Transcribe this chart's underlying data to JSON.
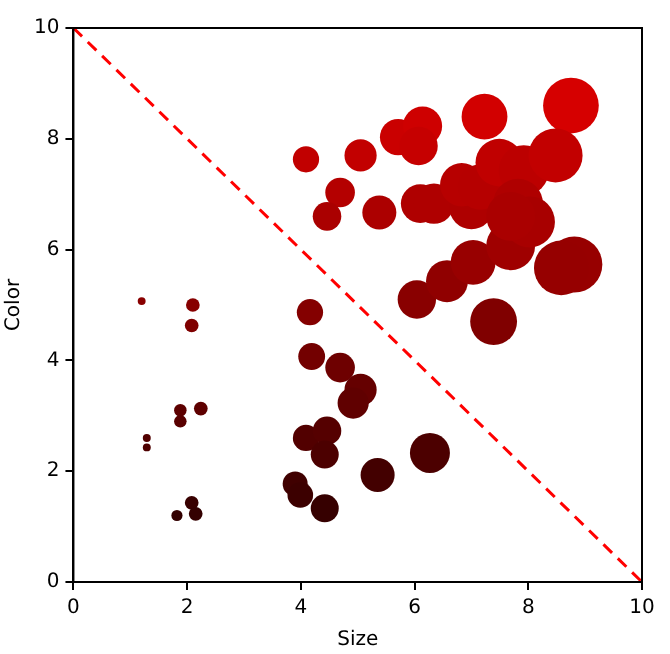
{
  "chart_data": {
    "type": "bubble",
    "xlabel": "Size",
    "ylabel": "Color",
    "xlim": [
      0,
      10
    ],
    "ylim": [
      0,
      10
    ],
    "xticks": [
      0,
      2,
      4,
      6,
      8,
      10
    ],
    "yticks": [
      0,
      2,
      4,
      6,
      8,
      10
    ],
    "grid": false,
    "legend": false,
    "series": [
      {
        "type": "bubble",
        "x": [
          1.2,
          2.1,
          2.08,
          4.16,
          4.19,
          4.69,
          5.05,
          4.92,
          1.88,
          1.88,
          2.24,
          1.29,
          1.29,
          4.09,
          4.46,
          4.42,
          6.27,
          5.35,
          3.9,
          3.99,
          4.42,
          2.08,
          1.82,
          2.15,
          6.04,
          6.57,
          7.03,
          7.39,
          7.69,
          8.81,
          8.58,
          4.09,
          5.05,
          4.69,
          4.46,
          5.38,
          5.71,
          6.14,
          6.07,
          7.23,
          8.75,
          6.1,
          6.34,
          7.0,
          6.83,
          7.16,
          7.49,
          7.92,
          8.48,
          7.82,
          8.02,
          7.69
        ],
        "values": [
          5.07,
          5.0,
          4.63,
          4.87,
          4.07,
          3.87,
          3.47,
          3.23,
          3.1,
          2.9,
          3.13,
          2.6,
          2.43,
          2.6,
          2.73,
          2.3,
          2.33,
          1.93,
          1.77,
          1.57,
          1.33,
          1.43,
          1.2,
          1.23,
          5.1,
          5.43,
          5.77,
          4.7,
          6.07,
          5.73,
          5.67,
          7.63,
          7.7,
          7.03,
          6.6,
          6.67,
          8.03,
          8.23,
          7.87,
          8.4,
          8.6,
          6.83,
          6.83,
          6.77,
          7.17,
          7.13,
          7.57,
          7.43,
          7.7,
          6.83,
          6.5,
          6.6
        ],
        "sizes": [
          0.02,
          0.06,
          0.06,
          0.22,
          0.23,
          0.28,
          0.33,
          0.31,
          0.05,
          0.05,
          0.06,
          0.02,
          0.02,
          0.22,
          0.26,
          0.25,
          0.51,
          0.37,
          0.2,
          0.21,
          0.25,
          0.06,
          0.04,
          0.06,
          0.47,
          0.56,
          0.64,
          0.7,
          0.76,
          1,
          0.95,
          0.22,
          0.33,
          0.28,
          0.26,
          0.37,
          0.42,
          0.49,
          0.47,
          0.67,
          0.99,
          0.48,
          0.52,
          0.63,
          0.6,
          0.66,
          0.72,
          0.81,
          0.93,
          0.79,
          0.83,
          0.76
        ],
        "colors": [
          "#890000",
          "#870000",
          "#7f0000",
          "#840000",
          "#730000",
          "#6e0000",
          "#650000",
          "#600000",
          "#5d0000",
          "#590000",
          "#5e0000",
          "#520000",
          "#4e0000",
          "#520000",
          "#550000",
          "#4c0000",
          "#4c0000",
          "#430000",
          "#400000",
          "#3c0000",
          "#360000",
          "#380000",
          "#330000",
          "#340000",
          "#890000",
          "#900000",
          "#980000",
          "#800000",
          "#9f0000",
          "#970000",
          "#960000",
          "#c10000",
          "#c20000",
          "#b40000",
          "#aa0000",
          "#ac0000",
          "#ca0000",
          "#ce0000",
          "#c60000",
          "#d20000",
          "#d60000",
          "#af0000",
          "#af0000",
          "#ae0000",
          "#b70000",
          "#b60000",
          "#c00000",
          "#bc0000",
          "#c20000",
          "#af0000",
          "#a80000",
          "#aa0000"
        ]
      },
      {
        "type": "line",
        "x": [
          0,
          10
        ],
        "values": [
          10,
          0
        ],
        "color": "#ff0000",
        "line_style": "dashed",
        "marker": "none"
      }
    ]
  }
}
